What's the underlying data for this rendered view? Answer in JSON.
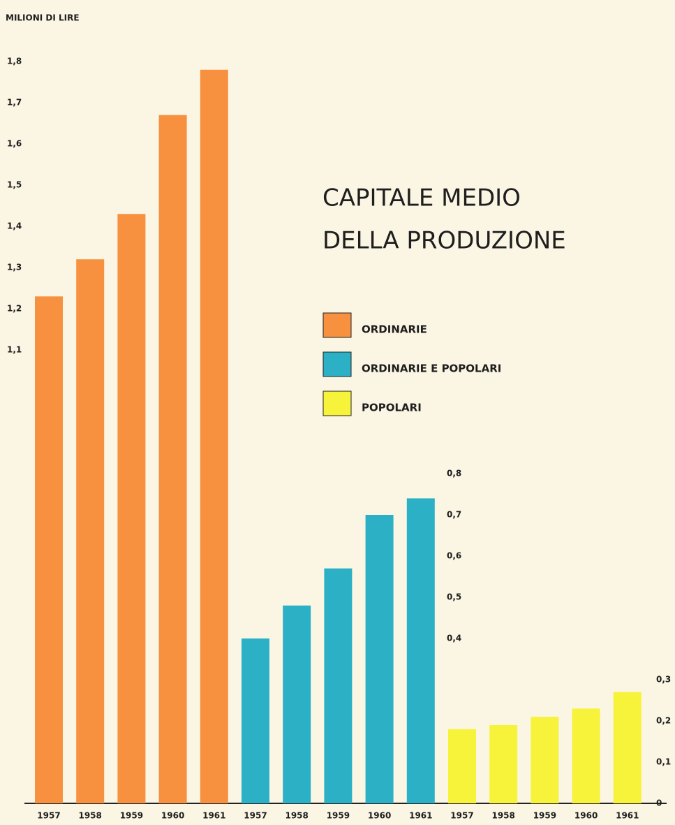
{
  "chart_data": {
    "type": "bar",
    "title": [
      "CAPITALE MEDIO",
      "DELLA PRODUZIONE"
    ],
    "y_label": "MILIONI DI LIRE",
    "ylim": [
      0,
      1.8
    ],
    "groups": [
      {
        "name": "ORDINARIE",
        "color": "#f7913f",
        "categories": [
          "1957",
          "1958",
          "1959",
          "1960",
          "1961"
        ],
        "values": [
          1.23,
          1.32,
          1.43,
          1.67,
          1.78
        ],
        "yticks": [
          {
            "value": 1.1,
            "label": "1,1"
          },
          {
            "value": 1.2,
            "label": "1,2"
          },
          {
            "value": 1.3,
            "label": "1,3"
          },
          {
            "value": 1.4,
            "label": "1,4"
          },
          {
            "value": 1.5,
            "label": "1,5"
          },
          {
            "value": 1.6,
            "label": "1,6"
          },
          {
            "value": 1.7,
            "label": "1,7"
          },
          {
            "value": 1.8,
            "label": "1,8"
          }
        ]
      },
      {
        "name": "ORDINARIE E POPOLARI",
        "color": "#2bb0c6",
        "categories": [
          "1957",
          "1958",
          "1959",
          "1960",
          "1961"
        ],
        "values": [
          0.4,
          0.48,
          0.57,
          0.7,
          0.74
        ],
        "yticks": [
          {
            "value": 0.4,
            "label": "0,4"
          },
          {
            "value": 0.5,
            "label": "0,5"
          },
          {
            "value": 0.6,
            "label": "0,6"
          },
          {
            "value": 0.7,
            "label": "0,7"
          },
          {
            "value": 0.8,
            "label": "0,8"
          }
        ]
      },
      {
        "name": "POPOLARI",
        "color": "#f7f23a",
        "categories": [
          "1957",
          "1958",
          "1959",
          "1960",
          "1961"
        ],
        "values": [
          0.18,
          0.19,
          0.21,
          0.23,
          0.27
        ],
        "yticks": [
          0,
          {
            "value": 0.1,
            "label": "0,1"
          },
          {
            "value": 0.2,
            "label": "0,2"
          },
          {
            "value": 0.3,
            "label": "0,3"
          }
        ]
      }
    ]
  }
}
